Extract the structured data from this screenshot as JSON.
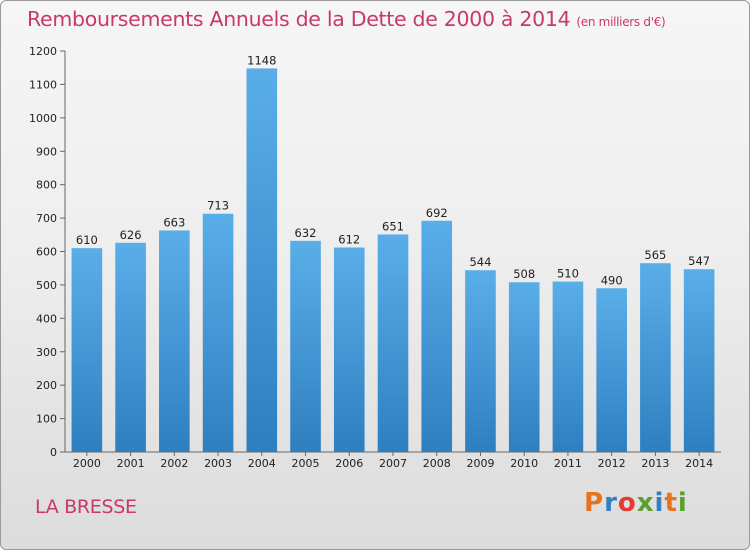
{
  "chart_data": {
    "type": "bar",
    "title": "Remboursements Annuels de la Dette de 2000 à 2014",
    "unit": "(en milliers d'€)",
    "categories": [
      "2000",
      "2001",
      "2002",
      "2003",
      "2004",
      "2005",
      "2006",
      "2007",
      "2008",
      "2009",
      "2010",
      "2011",
      "2012",
      "2013",
      "2014"
    ],
    "values": [
      610,
      626,
      663,
      713,
      1148,
      632,
      612,
      651,
      692,
      544,
      508,
      510,
      490,
      565,
      547
    ],
    "ylim": [
      0,
      1200
    ],
    "yticks": [
      0,
      100,
      200,
      300,
      400,
      500,
      600,
      700,
      800,
      900,
      1000,
      1100,
      1200
    ],
    "grid": false,
    "bar_color": "#4f9fd9",
    "xlabel": "",
    "ylabel": ""
  },
  "footer": {
    "place": "LA BRESSE",
    "logo_text": "Proxiti",
    "logo_colors": [
      "#e8731b",
      "#2f7fc1",
      "#e43a2f",
      "#5aa02c",
      "#2f7fc1",
      "#e8731b",
      "#5aa02c"
    ]
  }
}
